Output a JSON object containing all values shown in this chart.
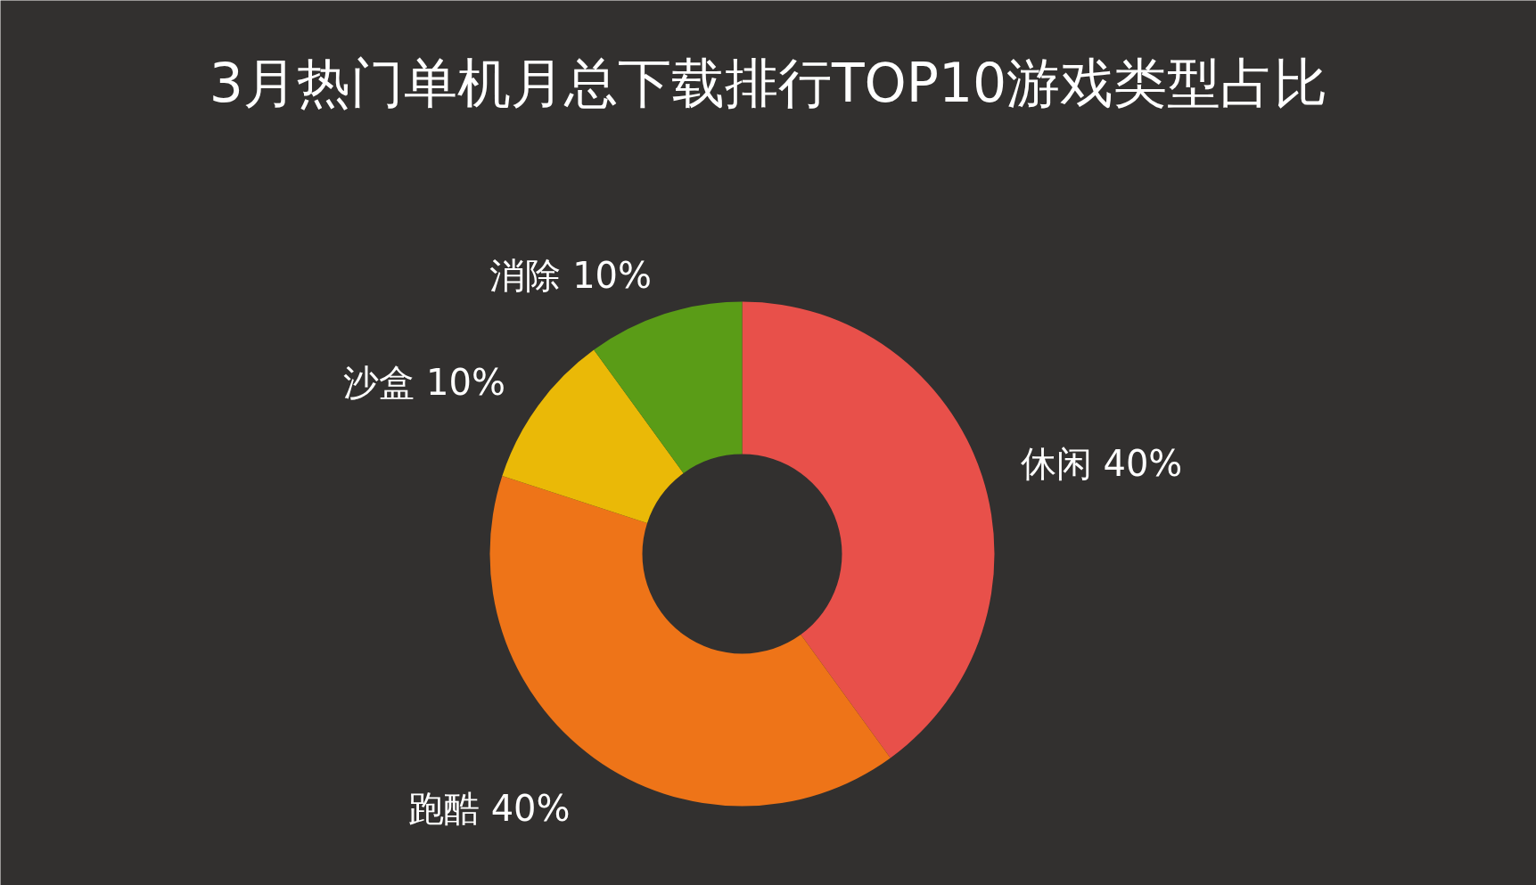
{
  "chart_data": {
    "type": "donut",
    "title": "3月热门单机月总下载排行TOP10游戏类型占比",
    "categories": [
      "休闲",
      "跑酷",
      "沙盒",
      "消除"
    ],
    "values": [
      40,
      40,
      10,
      10
    ],
    "value_labels": [
      "40%",
      "40%",
      "10%",
      "10%"
    ],
    "colors": [
      "#e8504a",
      "#ee7418",
      "#eab907",
      "#5a9c17"
    ]
  }
}
